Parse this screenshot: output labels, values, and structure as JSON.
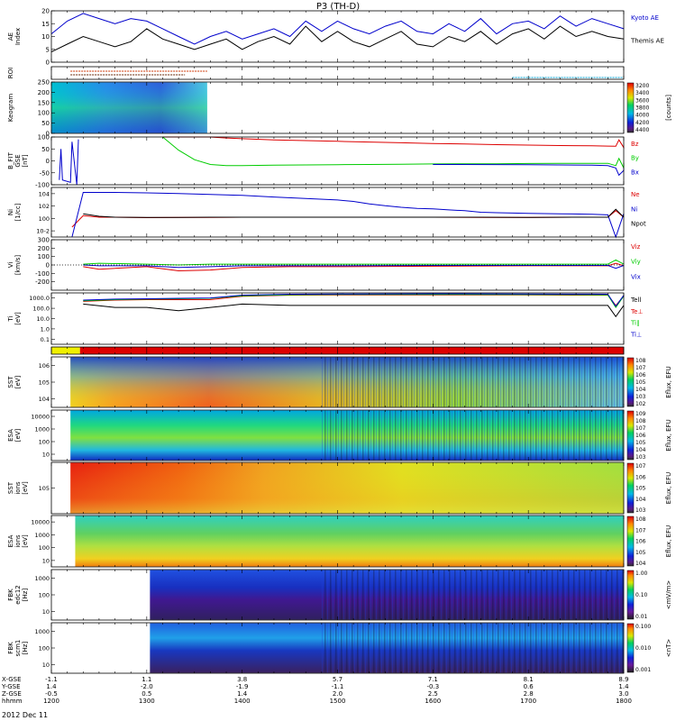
{
  "title": "P3 (TH-D)",
  "date_label": "2012 Dec 11",
  "axis_rows": {
    "labels": [
      "X-GSE",
      "Y-GSE",
      "Z-GSE",
      "hhmm"
    ],
    "columns": [
      [
        "-1.1",
        "1.4",
        "-0.5",
        "1200"
      ],
      [
        "1.1",
        "-2.0",
        "0.5",
        "1300"
      ],
      [
        "3.8",
        "-1.9",
        "1.4",
        "1400"
      ],
      [
        "5.7",
        "-1.1",
        "2.0",
        "1500"
      ],
      [
        "7.1",
        "-0.3",
        "2.5",
        "1600"
      ],
      [
        "8.1",
        "0.6",
        "2.8",
        "1700"
      ],
      [
        "8.9",
        "1.4",
        "3.0",
        "1800"
      ]
    ]
  },
  "chart_data": [
    {
      "type": "line",
      "id": "ae",
      "ylabel": "AE Index",
      "ylim": [
        0,
        20
      ],
      "yticks": [
        "0",
        "5",
        "10",
        "15",
        "20"
      ],
      "series": [
        {
          "name": "Kyoto AE",
          "color": "#0000cc",
          "x": [
            1200,
            1210,
            1220,
            1230,
            1240,
            1250,
            1300,
            1310,
            1320,
            1330,
            1340,
            1350,
            1400,
            1410,
            1420,
            1430,
            1440,
            1450,
            1500,
            1510,
            1520,
            1530,
            1540,
            1550,
            1600,
            1610,
            1620,
            1630,
            1640,
            1650,
            1700,
            1710,
            1720,
            1730,
            1740,
            1750,
            1800
          ],
          "values": [
            11,
            16,
            19,
            17,
            15,
            17,
            16,
            13,
            10,
            7,
            10,
            12,
            9,
            11,
            13,
            10,
            16,
            12,
            16,
            13,
            11,
            14,
            16,
            12,
            11,
            15,
            12,
            17,
            11,
            15,
            16,
            13,
            18,
            14,
            17,
            15,
            13
          ]
        },
        {
          "name": "Themis AE",
          "color": "#000000",
          "x": [
            1200,
            1210,
            1220,
            1230,
            1240,
            1250,
            1300,
            1310,
            1320,
            1330,
            1340,
            1350,
            1400,
            1410,
            1420,
            1430,
            1440,
            1450,
            1500,
            1510,
            1520,
            1530,
            1540,
            1550,
            1600,
            1610,
            1620,
            1630,
            1640,
            1650,
            1700,
            1710,
            1720,
            1730,
            1740,
            1750,
            1800
          ],
          "values": [
            4,
            7,
            10,
            8,
            6,
            8,
            13,
            9,
            7,
            5,
            7,
            9,
            5,
            8,
            10,
            7,
            14,
            8,
            12,
            8,
            6,
            9,
            12,
            7,
            6,
            10,
            8,
            12,
            7,
            11,
            13,
            9,
            14,
            10,
            12,
            10,
            9
          ]
        }
      ]
    },
    {
      "type": "bar",
      "id": "roi",
      "ylabel": "ROI"
    },
    {
      "type": "heatmap",
      "id": "keogram",
      "ylabel": "Keogram",
      "ylim": [
        0,
        250
      ],
      "yticks": [
        "0",
        "50",
        "100",
        "150",
        "200",
        "250"
      ],
      "xrange": [
        1200,
        1338
      ],
      "colorbar": {
        "label": "[counts]",
        "ticks": [
          "3200",
          "3400",
          "3600",
          "3800",
          "4000",
          "4200",
          "4400"
        ]
      }
    },
    {
      "type": "line",
      "id": "bfield",
      "ylabel": "B_FIT GSE [nT]",
      "ylim": [
        -100,
        100
      ],
      "yticks": [
        "-100",
        "-50",
        "0",
        "50",
        "100"
      ],
      "series": [
        {
          "name": "Bz",
          "color": "#dd0000",
          "x": [
            1200,
            1205,
            1206,
            1210,
            1212,
            1216,
            1217,
            1310,
            1320,
            1330,
            1340,
            1350,
            1400,
            1420,
            1440,
            1500,
            1520,
            1540,
            1600,
            1620,
            1640,
            1700,
            1720,
            1740,
            1750,
            1755,
            1757,
            1760,
            1800
          ],
          "values": [
            null,
            null,
            null,
            null,
            null,
            null,
            null,
            120,
            111,
            105,
            100,
            96,
            93,
            88,
            85,
            82,
            79,
            76,
            73,
            71,
            68,
            66,
            64,
            63,
            62,
            61,
            88,
            56,
            58
          ]
        },
        {
          "name": "By",
          "color": "#00cc00",
          "x": [
            1200,
            1205,
            1206,
            1210,
            1212,
            1216,
            1217,
            1300,
            1310,
            1320,
            1330,
            1340,
            1350,
            1400,
            1420,
            1440,
            1500,
            1520,
            1540,
            1600,
            1620,
            1640,
            1700,
            1720,
            1740,
            1750,
            1755,
            1757,
            1760,
            1800
          ],
          "values": [
            null,
            null,
            null,
            null,
            null,
            null,
            null,
            null,
            115,
            45,
            5,
            -15,
            -20,
            -20,
            -18,
            -17,
            -16,
            -15,
            -14,
            -13,
            -12,
            -12,
            -11,
            -10,
            -10,
            -10,
            -20,
            10,
            -30,
            -8
          ]
        },
        {
          "name": "Bx",
          "color": "#0000cc",
          "x": [
            1200,
            1205,
            1206,
            1207,
            1212,
            1213,
            1216,
            1217,
            1218,
            1300,
            1400,
            1500,
            1600,
            1700,
            1740,
            1750,
            1755,
            1757,
            1760,
            1800
          ],
          "values": [
            null,
            -80,
            50,
            -80,
            -90,
            80,
            -100,
            90,
            null,
            null,
            null,
            null,
            -15,
            -16,
            -18,
            -20,
            -30,
            -60,
            -40,
            -30
          ]
        }
      ]
    },
    {
      "type": "line",
      "id": "density",
      "ylabel": "Ni [1/cc]",
      "yscale": "log",
      "ylim": [
        0.0001,
        1000000
      ],
      "yticks": [
        "10^4",
        "10^2",
        "10^0",
        "10^-2"
      ],
      "series": [
        {
          "name": "Ne",
          "color": "#dd0000",
          "x": [
            1200,
            1208,
            1213,
            1220,
            1230,
            1240,
            1300,
            1320,
            1340,
            1400,
            1430,
            1500,
            1530,
            1600,
            1630,
            1700,
            1730,
            1745,
            1750,
            1755,
            1800
          ],
          "values": [
            null,
            null,
            0.01,
            2,
            1,
            1,
            0.8,
            0.9,
            0.9,
            1,
            1,
            1,
            1,
            1,
            0.9,
            0.9,
            1,
            1,
            1,
            20,
            1
          ]
        },
        {
          "name": "Ni",
          "color": "#0000cc",
          "x": [
            1200,
            1208,
            1213,
            1220,
            1240,
            1300,
            1320,
            1340,
            1400,
            1420,
            1440,
            1500,
            1510,
            1520,
            1530,
            1540,
            1550,
            1600,
            1610,
            1620,
            1630,
            1640,
            1700,
            1720,
            1740,
            1750,
            1755,
            1800
          ],
          "values": [
            null,
            null,
            0.0001,
            100000,
            100000,
            80000,
            60000,
            40000,
            25000,
            12000,
            6000,
            3000,
            1500,
            500,
            200,
            100,
            60,
            50,
            30,
            20,
            10,
            8,
            6,
            5,
            4,
            3,
            0.0001,
            5
          ]
        },
        {
          "name": "Npot",
          "color": "#000000",
          "x": [
            1200,
            1218,
            1220,
            1230,
            1240,
            1300,
            1320,
            1340,
            1400,
            1430,
            1500,
            1530,
            1600,
            1630,
            1700,
            1730,
            1745,
            1750,
            1755,
            1800
          ],
          "values": [
            null,
            null,
            5,
            1.5,
            1,
            0.9,
            0.9,
            1,
            1,
            1,
            1,
            1,
            1,
            1,
            0.9,
            1,
            1,
            1,
            40,
            1
          ]
        }
      ]
    },
    {
      "type": "line",
      "id": "velocity",
      "ylabel": "Vi [km/s]",
      "ylim": [
        -300,
        300
      ],
      "yticks": [
        "-200",
        "-100",
        "0",
        "100",
        "200",
        "300"
      ],
      "series": [
        {
          "name": "Viz",
          "color": "#dd0000",
          "x": [
            1200,
            1218,
            1220,
            1230,
            1300,
            1320,
            1340,
            1400,
            1430,
            1500,
            1600,
            1700,
            1740,
            1750,
            1755,
            1800
          ],
          "values": [
            null,
            null,
            -20,
            -50,
            -20,
            -70,
            -60,
            -30,
            -20,
            -20,
            -15,
            -10,
            -10,
            -10,
            20,
            -10
          ]
        },
        {
          "name": "Viy",
          "color": "#00cc00",
          "x": [
            1200,
            1218,
            1220,
            1230,
            1300,
            1320,
            1340,
            1400,
            1430,
            1500,
            1600,
            1700,
            1740,
            1750,
            1755,
            1800
          ],
          "values": [
            null,
            null,
            10,
            20,
            10,
            0,
            10,
            10,
            10,
            10,
            10,
            10,
            10,
            10,
            60,
            10
          ]
        },
        {
          "name": "Vix",
          "color": "#0000cc",
          "x": [
            1200,
            1218,
            1220,
            1230,
            1300,
            1320,
            1340,
            1400,
            1430,
            1500,
            1600,
            1700,
            1740,
            1750,
            1755,
            1800
          ],
          "values": [
            null,
            null,
            0,
            -10,
            -10,
            -30,
            -20,
            -10,
            -10,
            -10,
            -5,
            -5,
            -5,
            -5,
            -40,
            -5
          ]
        }
      ]
    },
    {
      "type": "line",
      "id": "temperature",
      "ylabel": "Ti [eV]",
      "yscale": "log",
      "ylim": [
        0.1,
        4000
      ],
      "yticks": [
        "1000.0",
        "100.0",
        "10.0",
        "1.0",
        "0.1"
      ],
      "series": [
        {
          "name": "Tell",
          "color": "#000000",
          "x": [
            1200,
            1218,
            1220,
            1240,
            1300,
            1320,
            1340,
            1400,
            1430,
            1500,
            1600,
            1700,
            1740,
            1750,
            1755,
            1800
          ],
          "values": [
            null,
            null,
            400,
            200,
            200,
            100,
            200,
            400,
            300,
            300,
            300,
            300,
            300,
            300,
            30,
            300
          ]
        },
        {
          "name": "Te⊥",
          "color": "#dd0000",
          "x": [
            1200,
            1218,
            1220,
            1240,
            1300,
            1320,
            1340,
            1400,
            1430,
            1500,
            1600,
            1700,
            1740,
            1750,
            1755,
            1800
          ],
          "values": [
            null,
            null,
            700,
            900,
            1000,
            1000,
            1000,
            2000,
            2500,
            2600,
            2600,
            2600,
            2500,
            2500,
            300,
            2000
          ]
        },
        {
          "name": "Ti∥",
          "color": "#00cc00",
          "x": [
            1200,
            1218,
            1220,
            1240,
            1300,
            1320,
            1340,
            1400,
            1430,
            1500,
            1600,
            1700,
            1740,
            1750,
            1755,
            1800
          ],
          "values": [
            null,
            null,
            800,
            1000,
            1100,
            1200,
            1300,
            2200,
            2700,
            2900,
            2900,
            2800,
            2700,
            2600,
            200,
            2100
          ]
        },
        {
          "name": "Ti⊥",
          "color": "#0000cc",
          "x": [
            1200,
            1218,
            1220,
            1240,
            1300,
            1320,
            1340,
            1400,
            1430,
            1500,
            1600,
            1700,
            1740,
            1750,
            1755,
            1800
          ],
          "values": [
            null,
            null,
            900,
            1100,
            1200,
            1300,
            1400,
            2500,
            3000,
            3200,
            3300,
            3200,
            3100,
            3000,
            250,
            2400
          ]
        }
      ]
    },
    {
      "type": "bar",
      "id": "mode",
      "ylabel": ""
    },
    {
      "type": "heatmap",
      "id": "sst_e",
      "ylabel": "SST [eV]",
      "yticks": [
        "10^6",
        "10^5",
        "10^4"
      ],
      "xrange": [
        1212,
        1800
      ],
      "colorbar": {
        "label": "Eflux, EFU",
        "ticks": [
          "10^8",
          "10^7",
          "10^6",
          "10^5",
          "10^4",
          "10^3",
          "10^2"
        ]
      }
    },
    {
      "type": "heatmap",
      "id": "esa_e",
      "ylabel": "ESA [eV]",
      "yticks": [
        "10000",
        "1000",
        "100",
        "10"
      ],
      "xrange": [
        1212,
        1800
      ],
      "colorbar": {
        "label": "Eflux, EFU",
        "ticks": [
          "10^9",
          "10^8",
          "10^7",
          "10^6",
          "10^5",
          "10^4",
          "10^3"
        ]
      }
    },
    {
      "type": "heatmap",
      "id": "sst_i",
      "ylabel": "SST ions [eV]",
      "yticks": [
        "10^5"
      ],
      "xrange": [
        1212,
        1800
      ],
      "colorbar": {
        "label": "Eflux, EFU",
        "ticks": [
          "10^7",
          "10^6",
          "10^5",
          "10^4",
          "10^3"
        ]
      }
    },
    {
      "type": "heatmap",
      "id": "esa_i",
      "ylabel": "ESA ions [eV]",
      "yticks": [
        "10000",
        "1000",
        "100",
        "10"
      ],
      "xrange": [
        1215,
        1800
      ],
      "colorbar": {
        "label": "Eflux, EFU",
        "ticks": [
          "10^8",
          "10^7",
          "10^6",
          "10^5",
          "10^4"
        ]
      }
    },
    {
      "type": "heatmap",
      "id": "fbk_e",
      "ylabel": "FBK edc12 [Hz]",
      "yticks": [
        "1000",
        "100",
        "10"
      ],
      "xrange": [
        1262,
        1800
      ],
      "colorbar": {
        "label": "<mV/m>",
        "ticks": [
          "1.00",
          "0.10",
          "0.01"
        ]
      }
    },
    {
      "type": "heatmap",
      "id": "fbk_b",
      "ylabel": "FBK scm1 [Hz]",
      "yticks": [
        "1000",
        "100",
        "10"
      ],
      "xrange": [
        1262,
        1800
      ],
      "colorbar": {
        "label": "<nT>",
        "ticks": [
          "0.100",
          "0.010",
          "0.001"
        ]
      }
    }
  ]
}
